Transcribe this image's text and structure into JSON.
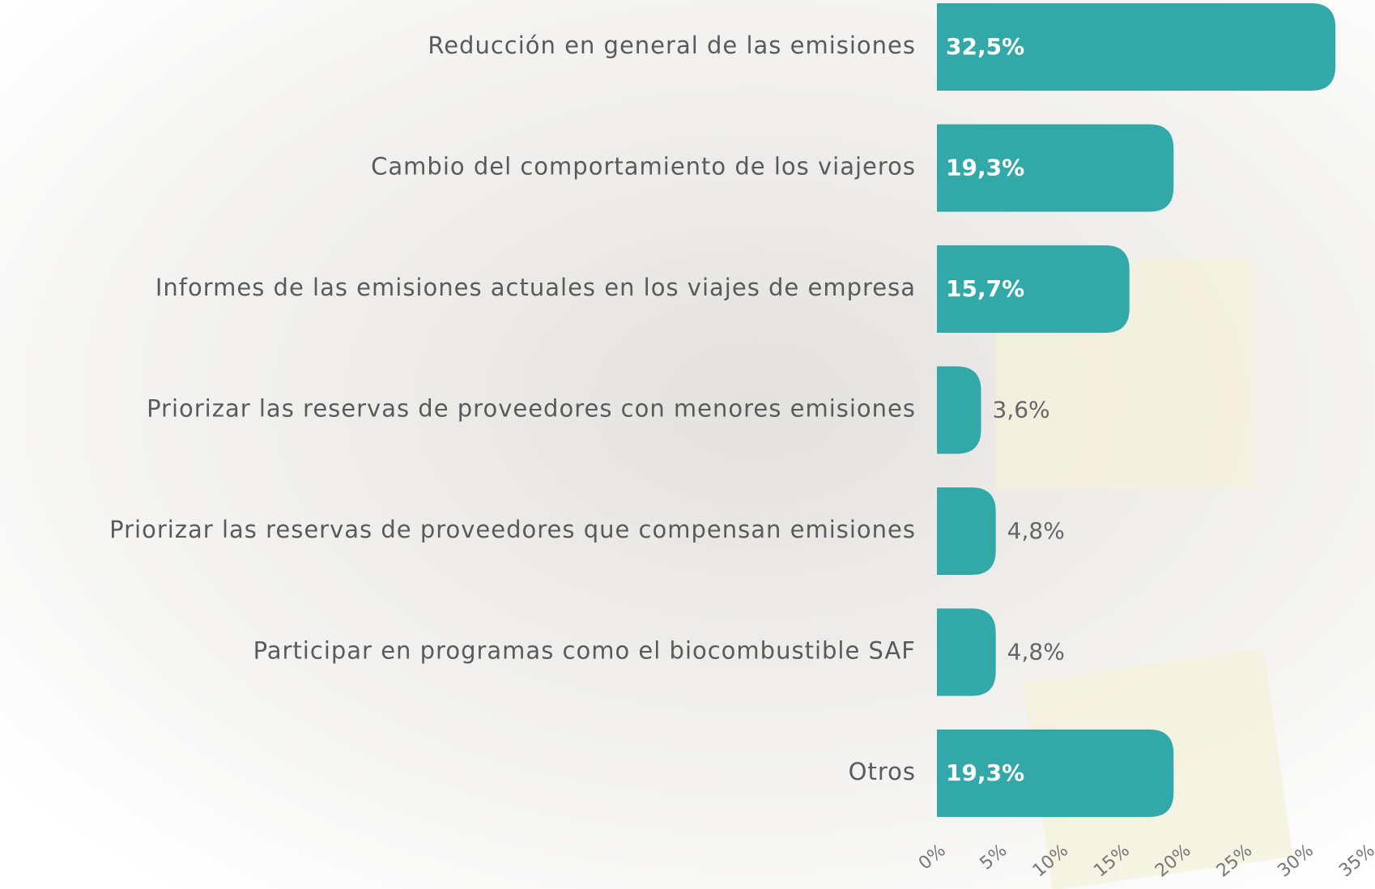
{
  "chart_data": {
    "type": "barh",
    "categories": [
      "Reducción en general de las emisiones",
      "Cambio del comportamiento de los viajeros",
      "Informes de las emisiones actuales en los viajes de empresa",
      "Priorizar las reservas de proveedores con menores emisiones",
      "Priorizar las reservas de proveedores que compensan emisiones",
      "Participar en programas como el biocombustible SAF",
      "Otros"
    ],
    "values": [
      32.5,
      19.3,
      15.7,
      3.6,
      4.8,
      4.8,
      19.3
    ],
    "value_labels": [
      "32,5%",
      "19,3%",
      "15,7%",
      "3,6%",
      "4,8%",
      "4,8%",
      "19,3%"
    ],
    "color": "#32a9a8",
    "xlim": [
      0,
      35
    ],
    "xticks": [
      {
        "value": 0,
        "label": "0%"
      },
      {
        "value": 5,
        "label": "5%"
      },
      {
        "value": 10,
        "label": "10%"
      },
      {
        "value": 15,
        "label": "15%"
      },
      {
        "value": 20,
        "label": "20%"
      },
      {
        "value": 25,
        "label": "25%"
      },
      {
        "value": 30,
        "label": "30%"
      },
      {
        "value": 35,
        "label": "35%"
      }
    ]
  }
}
